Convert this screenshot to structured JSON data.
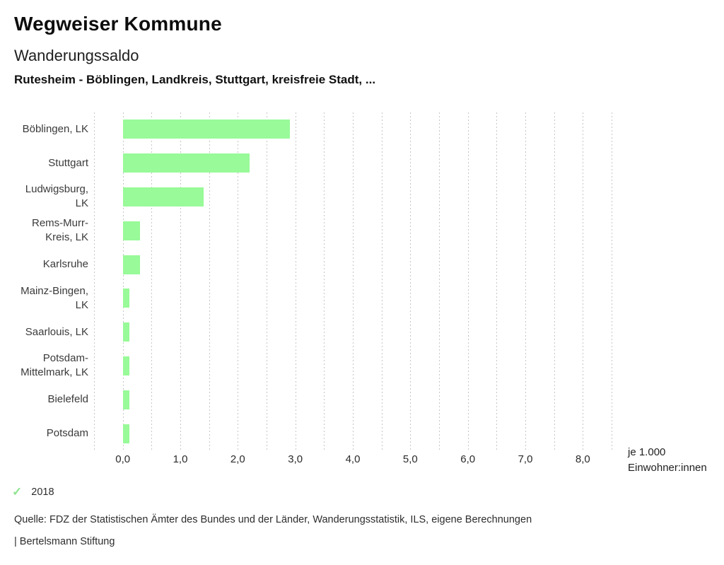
{
  "header": {
    "title": "Wegweiser Kommune",
    "subtitle": "Wanderungssaldo",
    "comparison_line": "Rutesheim - Böblingen, Landkreis, Stuttgart, kreisfreie Stadt, ..."
  },
  "chart_data": {
    "type": "bar",
    "orientation": "horizontal",
    "title": "Wanderungssaldo",
    "categories": [
      "Böblingen, LK",
      "Stuttgart",
      "Ludwigsburg, LK",
      "Rems-Murr-Kreis, LK",
      "Karlsruhe",
      "Mainz-Bingen, LK",
      "Saarlouis, LK",
      "Potsdam-Mittelmark, LK",
      "Bielefeld",
      "Potsdam"
    ],
    "series": [
      {
        "name": "2018",
        "values": [
          2.9,
          2.2,
          1.4,
          0.3,
          0.3,
          0.12,
          0.12,
          0.12,
          0.12,
          0.12
        ]
      }
    ],
    "xlim": [
      -0.5,
      8.5
    ],
    "gridline_step": 0.5,
    "grid": true,
    "x_tick_values": [
      0,
      1,
      2,
      3,
      4,
      5,
      6,
      7,
      8
    ],
    "x_tick_labels": [
      "0,0",
      "1,0",
      "2,0",
      "3,0",
      "4,0",
      "5,0",
      "6,0",
      "7,0",
      "8,0"
    ],
    "unit_line1": "je 1.000",
    "unit_line2": "Einwohner:innen",
    "bar_color": "#98fa98",
    "gridline_color": "#c6c6c6"
  },
  "legend": {
    "year": "2018",
    "check_icon": "✓",
    "check_color": "#8fe48f"
  },
  "footer": {
    "source": "Quelle: FDZ der Statistischen Ämter des Bundes und der Länder, Wanderungsstatistik, ILS, eigene Berechnungen",
    "attribution": "| Bertelsmann Stiftung"
  }
}
